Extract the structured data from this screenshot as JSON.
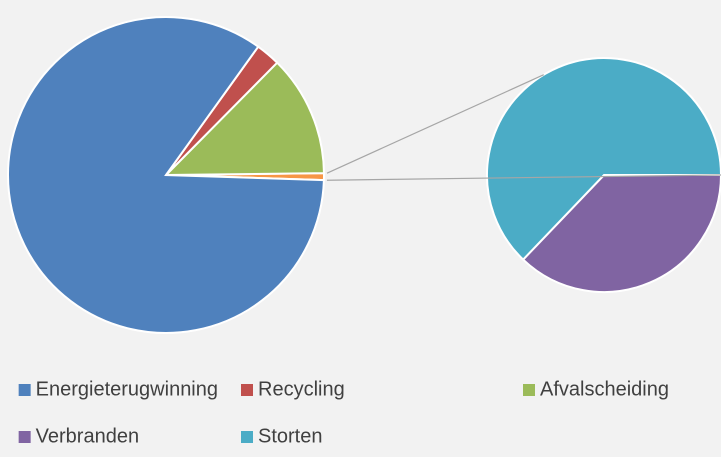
{
  "chart_data": {
    "type": "pie-of-pie",
    "categories": [
      "Energieterugwinning",
      "Recycling",
      "Afvalscheiding",
      "Verbranden",
      "Storten"
    ],
    "values": [
      84.4,
      2.5,
      12.4,
      0.26,
      0.44
    ],
    "colors": [
      "#4f81bd",
      "#c0504d",
      "#9bbb59",
      "#8064a2",
      "#4bacc6"
    ],
    "secondary_count": 2,
    "other_color": "#f79646",
    "legend": "bottom"
  }
}
